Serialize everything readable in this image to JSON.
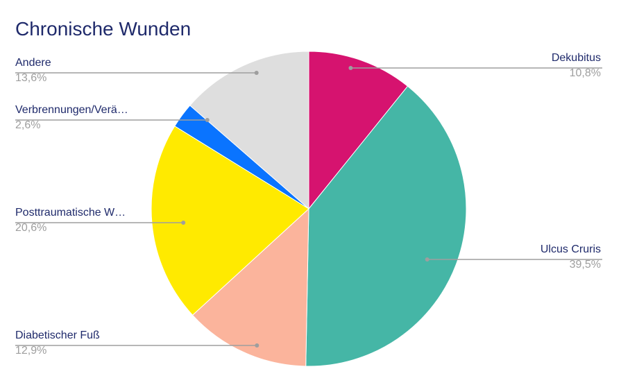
{
  "chart_data": {
    "type": "pie",
    "title": "Chronische Wunden",
    "slices": [
      {
        "label": "Dekubitus",
        "value": 10.8,
        "percent_label": "10,8%",
        "color": "#d6136f"
      },
      {
        "label": "Ulcus Cruris",
        "value": 39.5,
        "percent_label": "39,5%",
        "color": "#45b6a6"
      },
      {
        "label": "Diabetischer Fuß",
        "value": 12.9,
        "percent_label": "12,9%",
        "color": "#fbb49c"
      },
      {
        "label": "Posttraumatische W…",
        "value": 20.6,
        "percent_label": "20,6%",
        "color": "#ffea00"
      },
      {
        "label": "Verbrennungen/Verä…",
        "value": 2.6,
        "percent_label": "2,6%",
        "color": "#0a74ff"
      },
      {
        "label": "Andere",
        "value": 13.6,
        "percent_label": "13,6%",
        "color": "#dedede"
      }
    ],
    "legend": "leader-labels",
    "start_angle": "12 o'clock",
    "direction": "clockwise"
  }
}
